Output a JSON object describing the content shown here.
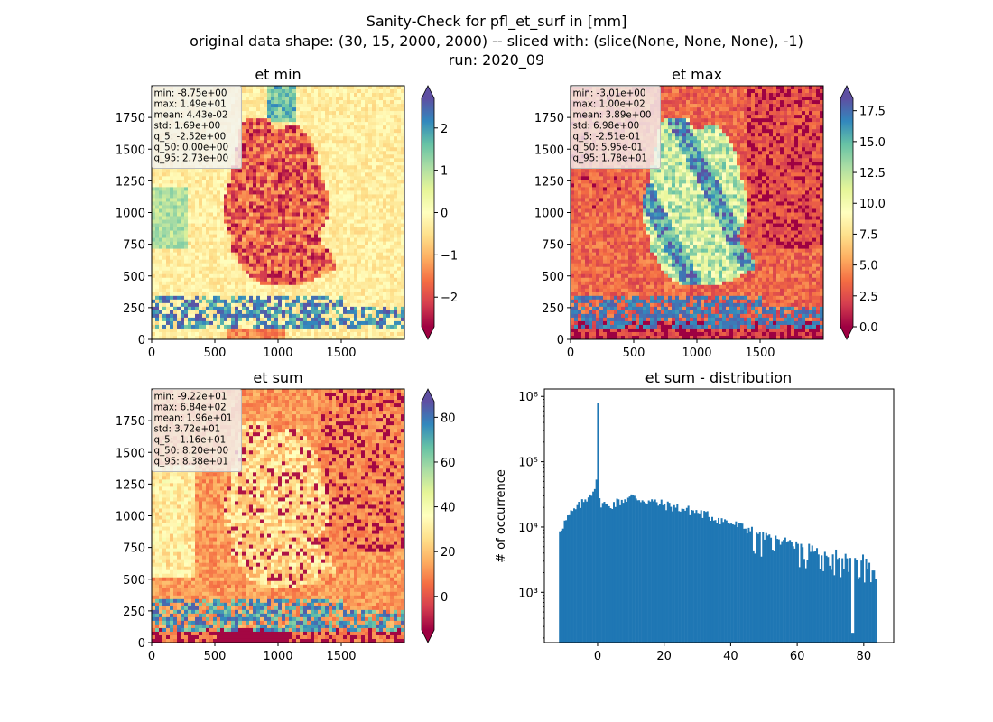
{
  "figure": {
    "title_lines": [
      "Sanity-Check for pfl_et_surf in [mm]",
      "original data shape: (30, 15, 2000, 2000) -- sliced with: (slice(None, None, None), -1)",
      "run: 2020_09"
    ]
  },
  "chart_data": [
    {
      "type": "heatmap",
      "title": "et min",
      "colormap": "Spectral",
      "xlim": [
        0,
        2000
      ],
      "ylim": [
        0,
        2000
      ],
      "x_ticks": [
        "0",
        "500",
        "1000",
        "1500"
      ],
      "y_ticks": [
        "0",
        "250",
        "500",
        "750",
        "1000",
        "1250",
        "1500",
        "1750"
      ],
      "colorbar_range": [
        -2.7,
        2.7
      ],
      "colorbar_ticks": [
        "2",
        "1",
        "0",
        "−1",
        "−2"
      ],
      "colorbar_tick_values": [
        2,
        1,
        0,
        -1,
        -2
      ],
      "colorbar_extend": "both",
      "stats": [
        "min: -8.75e+00",
        "max: 1.49e+01",
        "mean: 4.43e-02",
        "std: 1.69e+00",
        "q_5: -2.52e+00",
        "q_50: 0.00e+00",
        "q_95: 2.73e+00"
      ],
      "pattern": "min"
    },
    {
      "type": "heatmap",
      "title": "et max",
      "colormap": "Spectral",
      "xlim": [
        0,
        2000
      ],
      "ylim": [
        0,
        2000
      ],
      "x_ticks": [
        "0",
        "500",
        "1000",
        "1500"
      ],
      "y_ticks": [
        "0",
        "250",
        "500",
        "750",
        "1000",
        "1250",
        "1500",
        "1750"
      ],
      "colorbar_range": [
        0.0,
        18.5
      ],
      "colorbar_ticks": [
        "17.5",
        "15.0",
        "12.5",
        "10.0",
        "7.5",
        "5.0",
        "2.5",
        "0.0"
      ],
      "colorbar_tick_values": [
        17.5,
        15.0,
        12.5,
        10.0,
        7.5,
        5.0,
        2.5,
        0.0
      ],
      "colorbar_extend": "both",
      "stats": [
        "min: -3.01e+00",
        "max: 1.00e+02",
        "mean: 3.89e+00",
        "std: 6.98e+00",
        "q_5: -2.51e-01",
        "q_50: 5.95e-01",
        "q_95: 1.78e+01"
      ],
      "pattern": "max"
    },
    {
      "type": "heatmap",
      "title": "et sum",
      "colormap": "Spectral",
      "xlim": [
        0,
        2000
      ],
      "ylim": [
        0,
        2000
      ],
      "x_ticks": [
        "0",
        "500",
        "1000",
        "1500"
      ],
      "y_ticks": [
        "0",
        "250",
        "500",
        "750",
        "1000",
        "1250",
        "1500",
        "1750"
      ],
      "colorbar_range": [
        -15,
        87
      ],
      "colorbar_ticks": [
        "80",
        "60",
        "40",
        "20",
        "0"
      ],
      "colorbar_tick_values": [
        80,
        60,
        40,
        20,
        0
      ],
      "colorbar_extend": "both",
      "stats": [
        "min: -9.22e+01",
        "max: 6.84e+02",
        "mean: 1.96e+01",
        "std: 3.72e+01",
        "q_5: -1.16e+01",
        "q_50: 8.20e+00",
        "q_95: 8.38e+01"
      ],
      "pattern": "sum"
    },
    {
      "type": "bar",
      "title": "et sum - distribution",
      "ylabel": "# of occurrence",
      "xlabel": "",
      "yscale": "log",
      "ylim": [
        170,
        1300000
      ],
      "xlim": [
        -16,
        89
      ],
      "x_ticks": [
        "0",
        "20",
        "40",
        "60",
        "80"
      ],
      "x_tick_values": [
        0,
        20,
        40,
        60,
        80
      ],
      "y_ticks": [
        "10³",
        "10⁴",
        "10⁵",
        "10⁶"
      ],
      "y_tick_values": [
        1000,
        10000,
        100000,
        1000000
      ],
      "bin_range": [
        -11.6,
        83.8
      ],
      "bin_count": 200,
      "color": "#1f77b4",
      "anchor_counts": [
        [
          -11.6,
          9000
        ],
        [
          -8,
          16000
        ],
        [
          -4,
          25000
        ],
        [
          -1,
          40000
        ],
        [
          -0.3,
          48000
        ],
        [
          0,
          800000
        ],
        [
          0.5,
          25000
        ],
        [
          3,
          21000
        ],
        [
          10,
          29000
        ],
        [
          20,
          22000
        ],
        [
          30,
          17000
        ],
        [
          40,
          11500
        ],
        [
          50,
          7500
        ],
        [
          60,
          5500
        ],
        [
          70,
          4000
        ],
        [
          80,
          3200
        ],
        [
          83.8,
          1800
        ]
      ]
    }
  ]
}
